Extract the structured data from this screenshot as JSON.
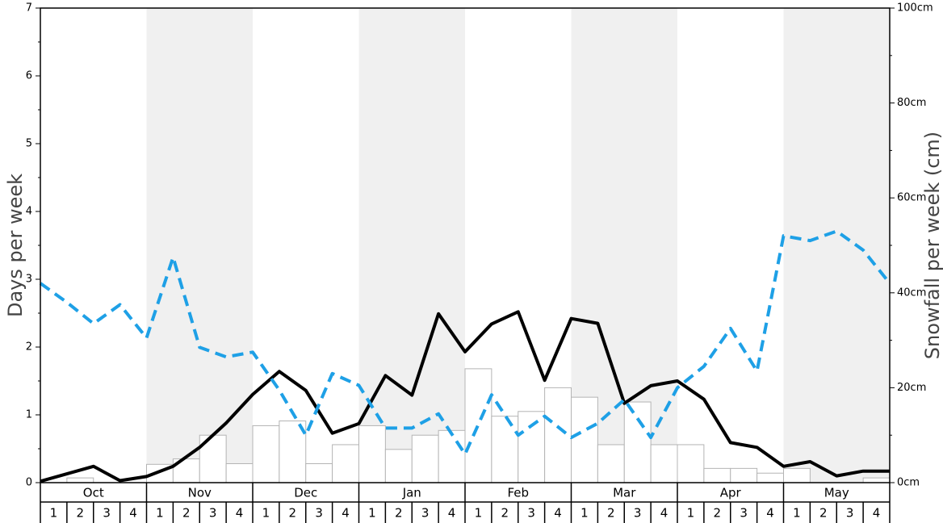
{
  "chart_data": {
    "type": "bar",
    "months": [
      "Oct",
      "Nov",
      "Dec",
      "Jan",
      "Feb",
      "Mar",
      "Apr",
      "May"
    ],
    "week_labels": [
      "1",
      "2",
      "3",
      "4"
    ],
    "left_axis": {
      "label": "Days per week",
      "range": [
        0,
        7
      ],
      "ticks": [
        "0",
        "1",
        "2",
        "3",
        "4",
        "5",
        "6",
        "7"
      ]
    },
    "right_axis": {
      "label": "Snowfall per week (cm)",
      "range": [
        0,
        100
      ],
      "ticks": [
        "0cm",
        "20cm",
        "40cm",
        "60cm",
        "80cm",
        "100cm"
      ]
    },
    "series": [
      {
        "type": "bar",
        "axis": "left",
        "values": [
          0,
          0.07,
          0,
          0,
          0.27,
          0.35,
          0.7,
          0.28,
          0.84,
          0.91,
          0.28,
          0.56,
          0.84,
          0.49,
          0.7,
          0.77,
          1.68,
          0.98,
          1.05,
          1.4,
          1.26,
          0.56,
          1.19,
          0.56,
          0.56,
          0.21,
          0.21,
          0.14,
          0.21,
          0,
          0,
          0.07
        ]
      },
      {
        "type": "line",
        "style": "solid",
        "color": "#000000",
        "axis": "left",
        "values": [
          0.02,
          0.13,
          0.24,
          0.03,
          0.09,
          0.24,
          0.52,
          0.88,
          1.3,
          1.64,
          1.36,
          0.73,
          0.87,
          1.58,
          1.29,
          2.49,
          1.93,
          2.34,
          2.52,
          1.51,
          2.42,
          2.35,
          1.17,
          1.43,
          1.5,
          1.23,
          0.59,
          0.52,
          0.24,
          0.31,
          0.1,
          0.17,
          0.17
        ]
      },
      {
        "type": "line",
        "style": "dashed",
        "color": "#1ea0e6",
        "axis": "right",
        "values": [
          42,
          38,
          33.5,
          37.5,
          30.5,
          47.5,
          28.5,
          26.5,
          27.5,
          19.5,
          10,
          23,
          20.5,
          11.5,
          11.5,
          14.5,
          6,
          18.5,
          10,
          14,
          9.5,
          12.5,
          17.5,
          9.5,
          20,
          24.5,
          32.5,
          23.5,
          52,
          51,
          53,
          49,
          42
        ]
      }
    ]
  }
}
